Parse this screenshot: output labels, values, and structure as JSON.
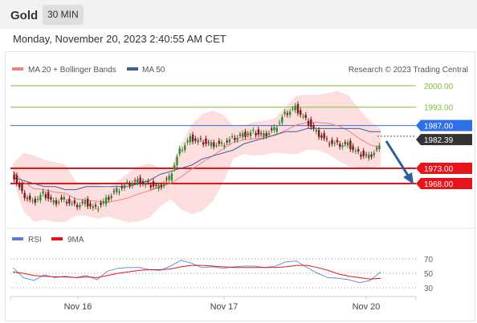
{
  "header": {
    "title": "Gold",
    "timeframe": "30 MIN"
  },
  "datetime": "Monday, November 20, 2023 2:40:55 AM CET",
  "legend": {
    "ma20": {
      "label": "MA 20 + Bollinger Bands",
      "color": "#f08080"
    },
    "ma50": {
      "label": "MA 50",
      "color": "#3a5fa0"
    },
    "credit": "Research © 2023 Trading Central"
  },
  "price_levels": [
    {
      "label": "2000.00",
      "value": 2000.0,
      "style": "text-green"
    },
    {
      "label": "1993.00",
      "value": 1993.0,
      "style": "text-green"
    },
    {
      "label": "1987.00",
      "value": 1987.0,
      "style": "blue-badge"
    },
    {
      "label": "1982.39",
      "value": 1982.39,
      "style": "dark-badge"
    },
    {
      "label": "1973.00",
      "value": 1973.0,
      "style": "red-badge"
    },
    {
      "label": "1968.00",
      "value": 1968.0,
      "style": "red-badge"
    }
  ],
  "rsi_legend": {
    "rsi": "RSI",
    "ma": "9MA"
  },
  "rsi_levels": [
    "70",
    "50",
    "30"
  ],
  "x_labels": [
    "Nov 16",
    "Nov 17",
    "Nov 20"
  ],
  "colors": {
    "green": "#7fbf3f",
    "blue": "#2f6fe8",
    "red": "#e8141b",
    "dark": "#333333",
    "arrow": "#2a5f9e",
    "candle_up": "#2e8b2e",
    "candle_down": "#7a1a1a"
  },
  "chart_data": {
    "type": "line",
    "title": "Gold",
    "x_ticks": [
      "Nov 16",
      "Nov 17",
      "Nov 20"
    ],
    "y_ticks": [
      2000.0,
      1993.0,
      1987.0,
      1982.39,
      1973.0,
      1968.0
    ],
    "price": [
      1972,
      1965,
      1962,
      1965,
      1962,
      1963,
      1961,
      1962,
      1960,
      1963,
      1966,
      1968,
      1969,
      1968,
      1967,
      1970,
      1979,
      1983,
      1982,
      1981,
      1981,
      1983,
      1984,
      1985,
      1984,
      1986,
      1991,
      1993,
      1989,
      1985,
      1982,
      1981,
      1981,
      1978,
      1977,
      1980
    ],
    "ma50": [
      1970,
      1969,
      1968,
      1967,
      1967,
      1966,
      1966,
      1967,
      1967,
      1967,
      1967,
      1967,
      1968,
      1969,
      1971,
      1972,
      1973,
      1974,
      1976,
      1977,
      1978,
      1979,
      1981,
      1982,
      1983,
      1984,
      1985,
      1985,
      1986,
      1986,
      1986,
      1986,
      1986,
      1986,
      1985,
      1985
    ],
    "rsi": [
      58,
      44,
      40,
      48,
      44,
      46,
      44,
      47,
      41,
      53,
      57,
      58,
      58,
      55,
      54,
      60,
      68,
      64,
      58,
      59,
      57,
      59,
      60,
      60,
      58,
      60,
      66,
      67,
      58,
      50,
      44,
      43,
      41,
      37,
      40,
      52
    ],
    "rsi_ma": [
      52,
      50,
      47,
      46,
      45,
      45,
      44,
      45,
      44,
      47,
      50,
      52,
      54,
      55,
      55,
      56,
      59,
      61,
      61,
      60,
      59,
      58,
      58,
      58,
      58,
      58,
      59,
      61,
      61,
      58,
      54,
      49,
      46,
      44,
      42,
      43
    ],
    "rsi_ylim": [
      30,
      70
    ]
  }
}
